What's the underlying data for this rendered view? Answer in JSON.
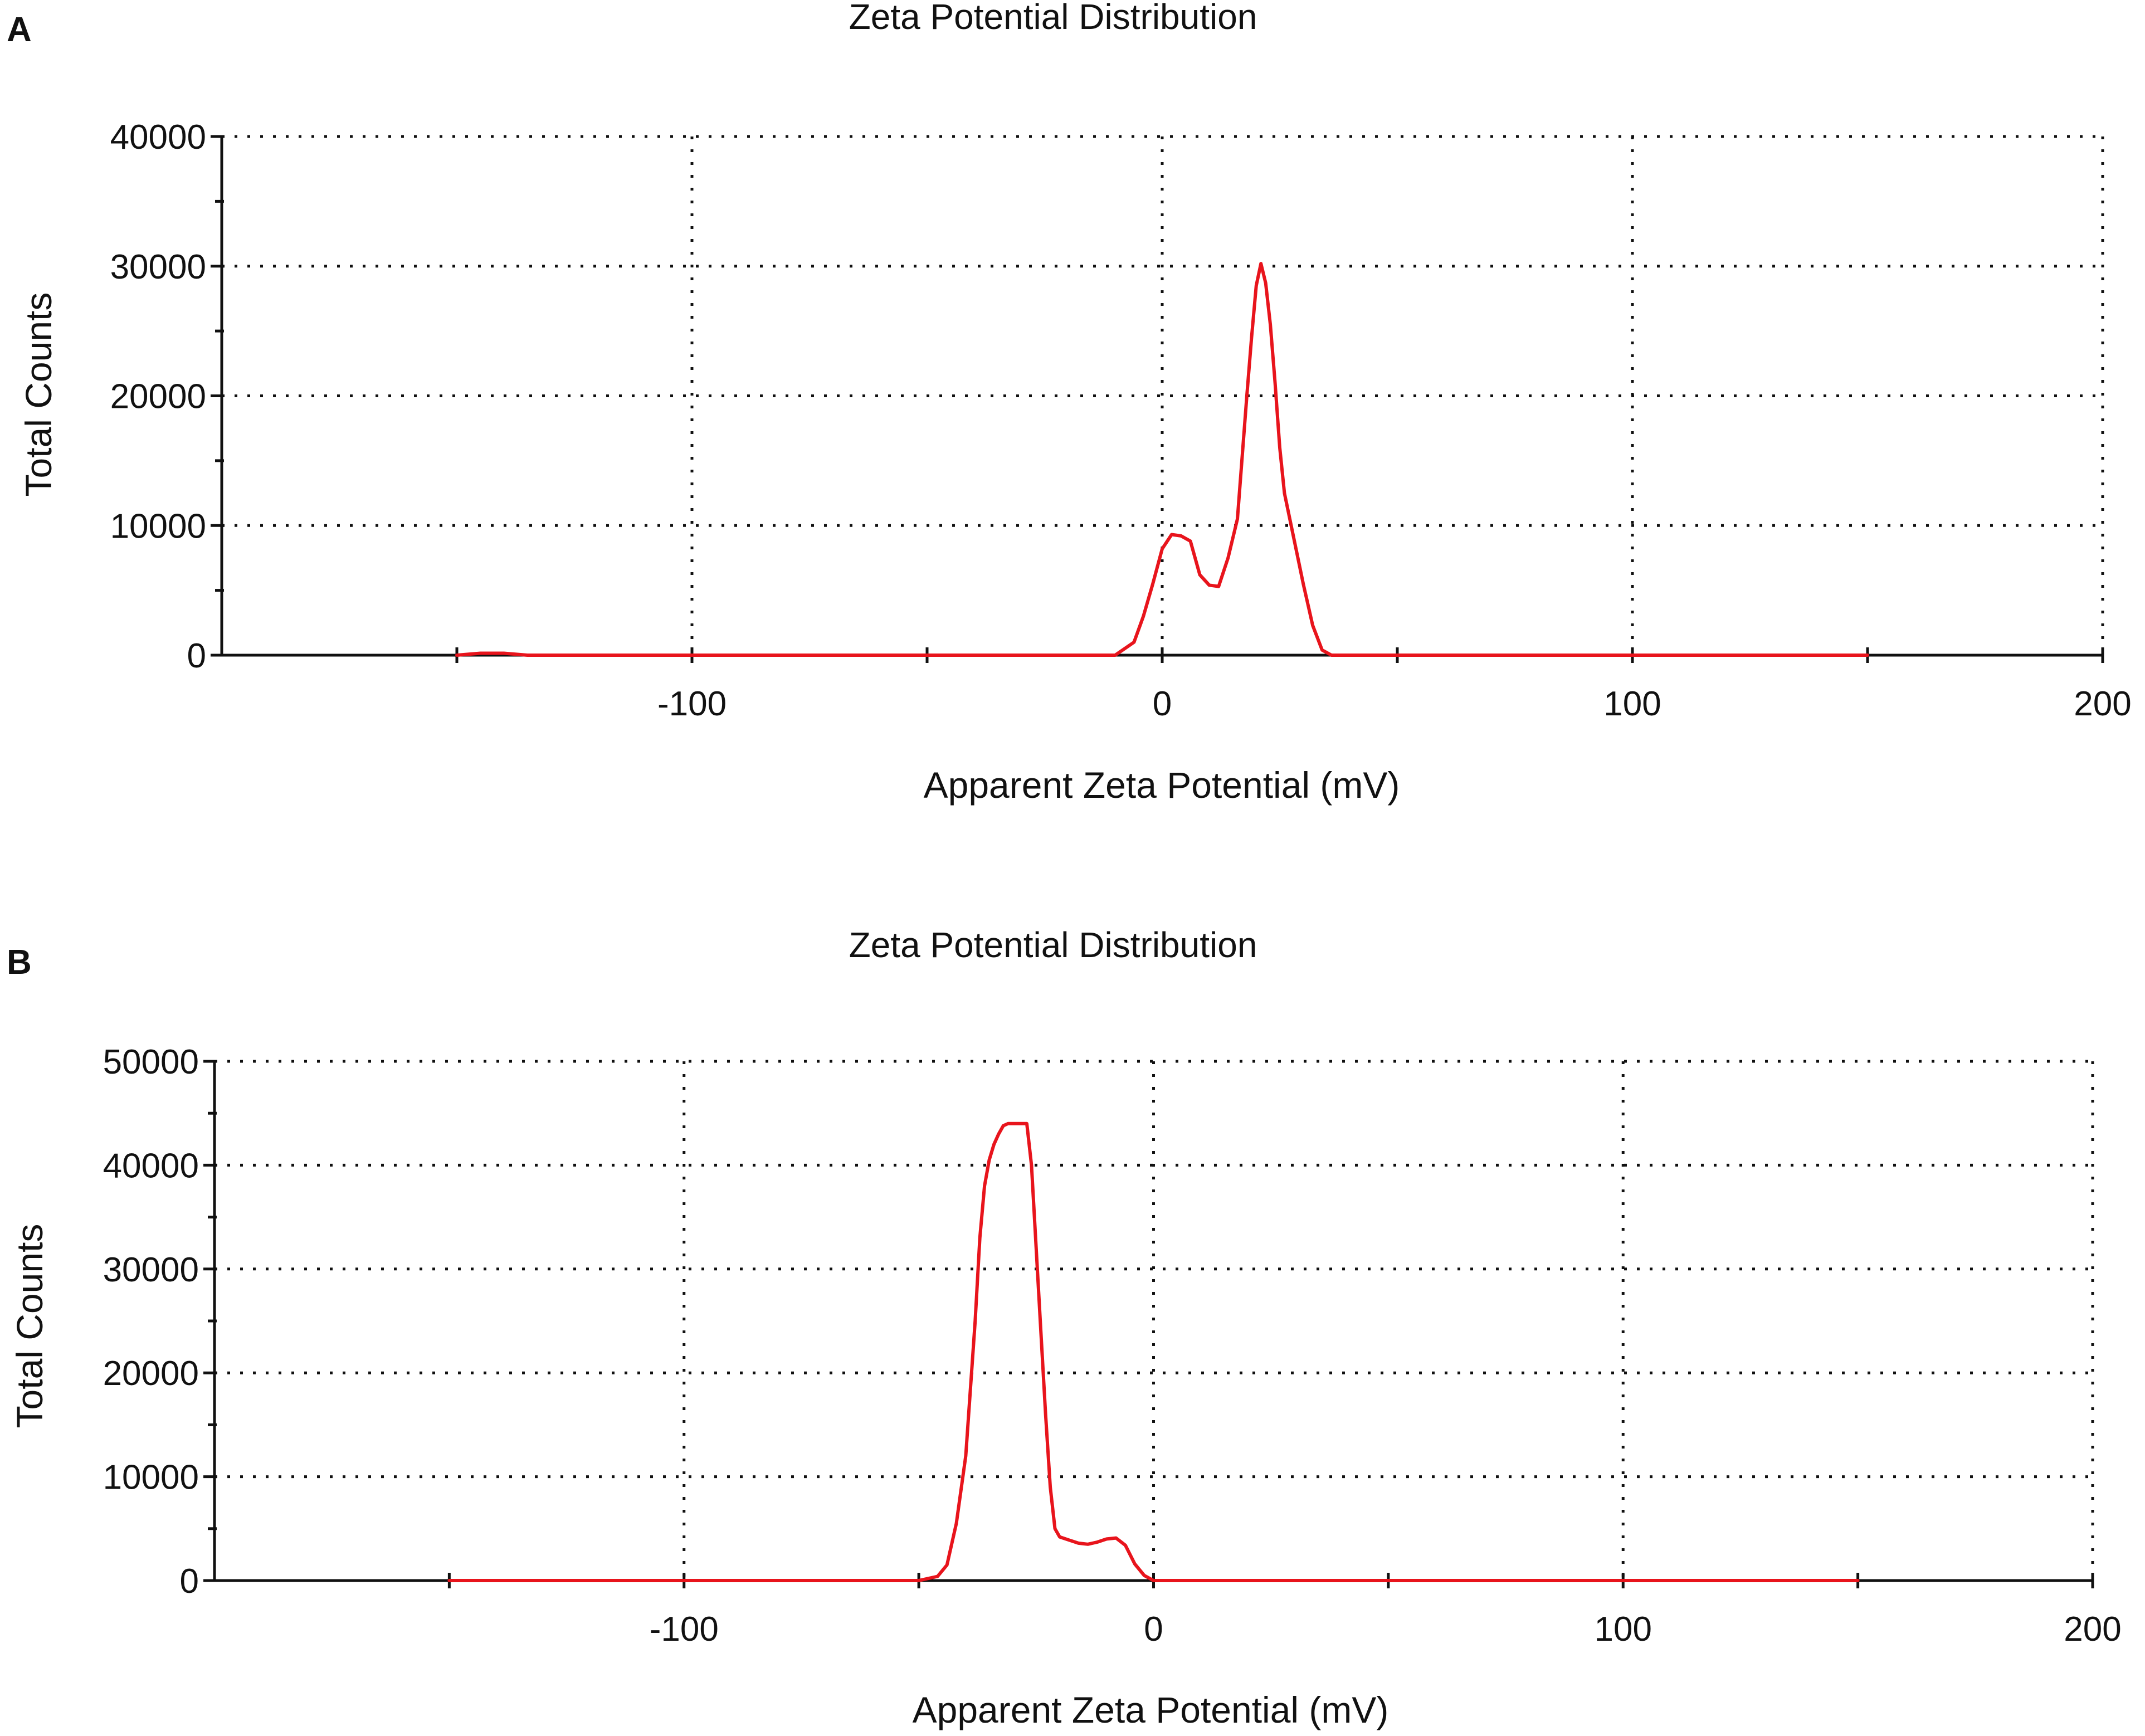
{
  "chart_data": [
    {
      "panel_label": "A",
      "type": "line",
      "title": "Zeta Potential Distribution",
      "xlabel": "Apparent Zeta Potential (mV)",
      "ylabel": "Total Counts",
      "xlim": [
        -200,
        200
      ],
      "ylim": [
        0,
        40000
      ],
      "x_ticks": [
        -100,
        0,
        100,
        200
      ],
      "x_tick_labels": [
        "-100",
        "0",
        "100",
        "200"
      ],
      "x_minor_ticks": [
        -150,
        -50,
        50,
        150
      ],
      "y_ticks": [
        0,
        10000,
        20000,
        30000,
        40000
      ],
      "y_tick_labels": [
        "0",
        "10000",
        "20000",
        "30000",
        "40000"
      ],
      "y_minor_ticks": [
        5000,
        15000,
        25000,
        35000
      ],
      "grid": true,
      "line_color": "#e8141c",
      "series": [
        {
          "x": [
            -150,
            -145,
            -140,
            -135,
            -100,
            -50,
            -10,
            -6,
            -4,
            -2,
            0,
            2,
            4,
            6,
            8,
            10,
            12,
            14,
            16,
            18,
            19,
            20,
            21,
            22,
            23,
            24,
            25,
            26,
            28,
            30,
            32,
            34,
            36,
            38,
            50,
            100,
            150
          ],
          "y": [
            0,
            150,
            150,
            0,
            0,
            0,
            0,
            1000,
            3000,
            5500,
            8200,
            9300,
            9200,
            8800,
            6200,
            5400,
            5300,
            7500,
            10500,
            20000,
            24500,
            28500,
            30200,
            28700,
            25500,
            21000,
            16000,
            12500,
            9000,
            5500,
            2300,
            400,
            0,
            0,
            0,
            0,
            0
          ]
        }
      ]
    },
    {
      "panel_label": "B",
      "type": "line",
      "title": "Zeta Potential Distribution",
      "xlabel": "Apparent Zeta Potential (mV)",
      "ylabel": "Total Counts",
      "xlim": [
        -200,
        200
      ],
      "ylim": [
        0,
        50000
      ],
      "x_ticks": [
        -100,
        0,
        100,
        200
      ],
      "x_tick_labels": [
        "-100",
        "0",
        "100",
        "200"
      ],
      "x_minor_ticks": [
        -150,
        -50,
        50,
        150
      ],
      "y_ticks": [
        0,
        10000,
        20000,
        30000,
        40000,
        50000
      ],
      "y_tick_labels": [
        "0",
        "10000",
        "20000",
        "30000",
        "40000",
        "50000"
      ],
      "y_minor_ticks": [
        5000,
        15000,
        25000,
        35000,
        45000
      ],
      "grid": true,
      "line_color": "#e8141c",
      "series": [
        {
          "x": [
            -150,
            -100,
            -50,
            -46,
            -44,
            -42,
            -40,
            -38,
            -37,
            -36,
            -35,
            -34,
            -33,
            -32,
            -31,
            -30,
            -29,
            -28,
            -27,
            -26,
            -25,
            -24,
            -23,
            -22,
            -21,
            -20,
            -18,
            -16,
            -14,
            -12,
            -10,
            -8,
            -6,
            -4,
            -2,
            0,
            50,
            100,
            150
          ],
          "y": [
            0,
            0,
            0,
            400,
            1500,
            5500,
            12000,
            25000,
            33000,
            38000,
            40500,
            42000,
            43000,
            43800,
            44000,
            44000,
            44000,
            44000,
            44000,
            40000,
            32000,
            24000,
            16000,
            9000,
            5000,
            4200,
            3900,
            3600,
            3500,
            3700,
            4000,
            4100,
            3400,
            1600,
            500,
            0,
            0,
            0,
            0
          ]
        }
      ]
    }
  ]
}
